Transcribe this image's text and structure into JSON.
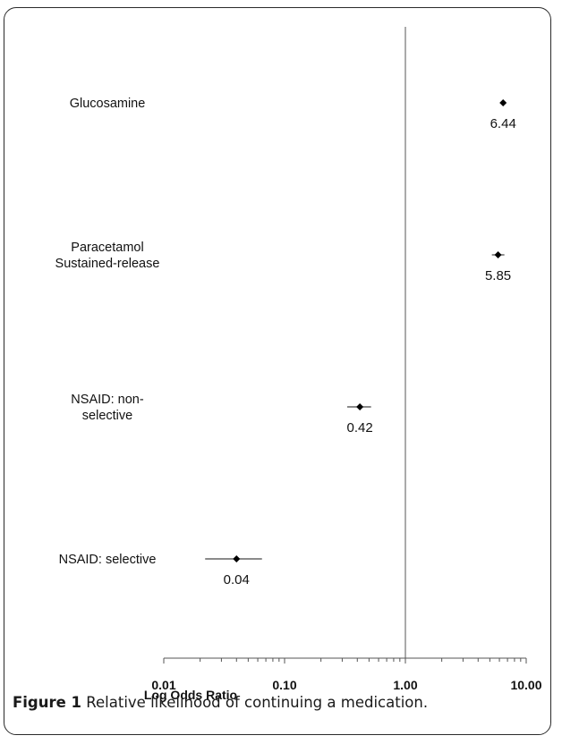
{
  "chart_data": {
    "type": "scatter",
    "xlabel": "Log Odds Ratio",
    "xscale": "log",
    "xlim": [
      0.01,
      10
    ],
    "xticks": [
      "0.01",
      "0.10",
      "1.00",
      "10.00"
    ],
    "tick_values": [
      0.01,
      0.1,
      1,
      10
    ],
    "reference_line": 1,
    "grid": false,
    "series": [
      {
        "points": [
          {
            "category": [
              "Glucosamine"
            ],
            "or": 6.44,
            "ci": [
              6.2,
              6.7
            ],
            "label": "6.44"
          },
          {
            "category": [
              "Paracetamol",
              "Sustained-release"
            ],
            "or": 5.85,
            "ci": [
              5.2,
              6.6
            ],
            "label": "5.85"
          },
          {
            "category": [
              "NSAID: non-",
              "selective"
            ],
            "or": 0.42,
            "ci": [
              0.33,
              0.52
            ],
            "label": "0.42"
          },
          {
            "category": [
              "NSAID: selective"
            ],
            "or": 0.04,
            "ci": [
              0.022,
              0.065
            ],
            "label": "0.04"
          }
        ]
      }
    ]
  },
  "caption": {
    "label": "Figure 1",
    "text": " Relative likelihood of continuing a medication."
  }
}
